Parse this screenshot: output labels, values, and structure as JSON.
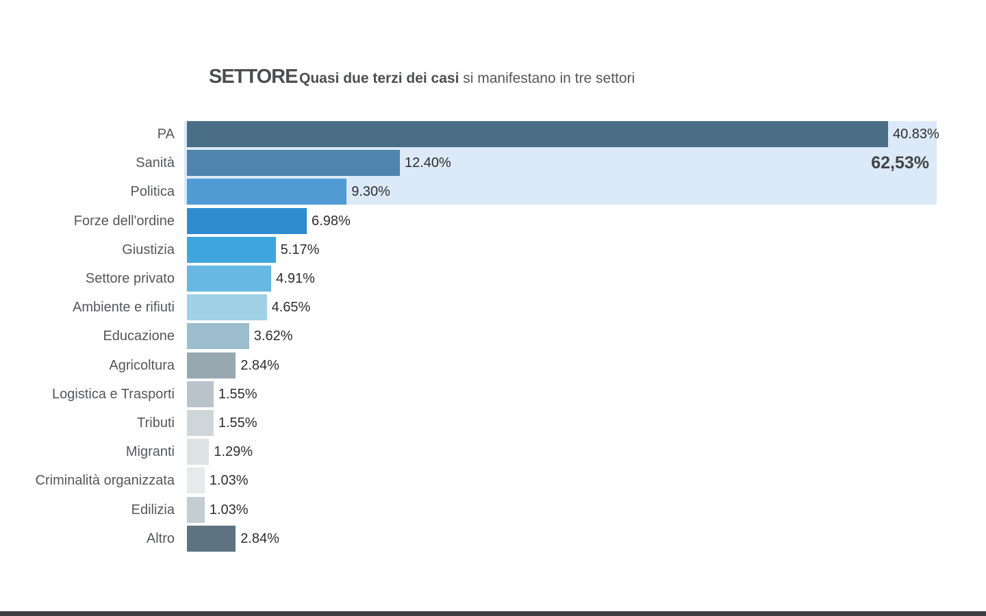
{
  "header": {
    "title": "SETTORE",
    "subtitle_bold": "Quasi due terzi dei casi",
    "subtitle_rest": " si manifestano in tre settori"
  },
  "chart_data": {
    "type": "bar",
    "orientation": "horizontal",
    "title": "SETTORE",
    "subtitle": "Quasi due terzi dei casi si manifestano in tre settori",
    "xlabel": "",
    "ylabel": "",
    "xlim": [
      0,
      43.7
    ],
    "grid": false,
    "legend": "none",
    "categories": [
      "PA",
      "Sanità",
      "Politica",
      "Forze dell'ordine",
      "Giustizia",
      "Settore privato",
      "Ambiente e rifiuti",
      "Educazione",
      "Agricoltura",
      "Logistica e Trasporti",
      "Tributi",
      "Migranti",
      "Criminalità organizzata",
      "Edilizia",
      "Altro"
    ],
    "values": [
      40.83,
      12.4,
      9.3,
      6.98,
      5.17,
      4.91,
      4.65,
      3.62,
      2.84,
      1.55,
      1.55,
      1.29,
      1.03,
      1.03,
      2.84
    ],
    "value_labels": [
      "40.83%",
      "12.40%",
      "9.30%",
      "6.98%",
      "5.17%",
      "4.91%",
      "4.65%",
      "3.62%",
      "2.84%",
      "1.55%",
      "1.55%",
      "1.29%",
      "1.03%",
      "1.03%",
      "2.84%"
    ],
    "bar_colors": [
      "#4a6e85",
      "#4f84ad",
      "#519bd5",
      "#2d8dcf",
      "#3ea6dd",
      "#67b8e2",
      "#a1d1e6",
      "#9cbdcd",
      "#97a8b1",
      "#b9c3c9",
      "#cfd6da",
      "#dde2e4",
      "#e7e9ea",
      "#c4cdd2",
      "#5e7380"
    ],
    "highlight": {
      "rows": [
        "PA",
        "Sanità",
        "Politica"
      ],
      "total_label": "62,53%",
      "background_color": "#dbe9f8"
    }
  },
  "colors": {
    "title_text": "#4c4d4f",
    "subtitle_text": "#55565a",
    "category_text": "#55565a",
    "value_text": "#2d2d2f",
    "total_text": "#434446",
    "footer_bar": "#3f3f41",
    "background": "#ffffff"
  }
}
